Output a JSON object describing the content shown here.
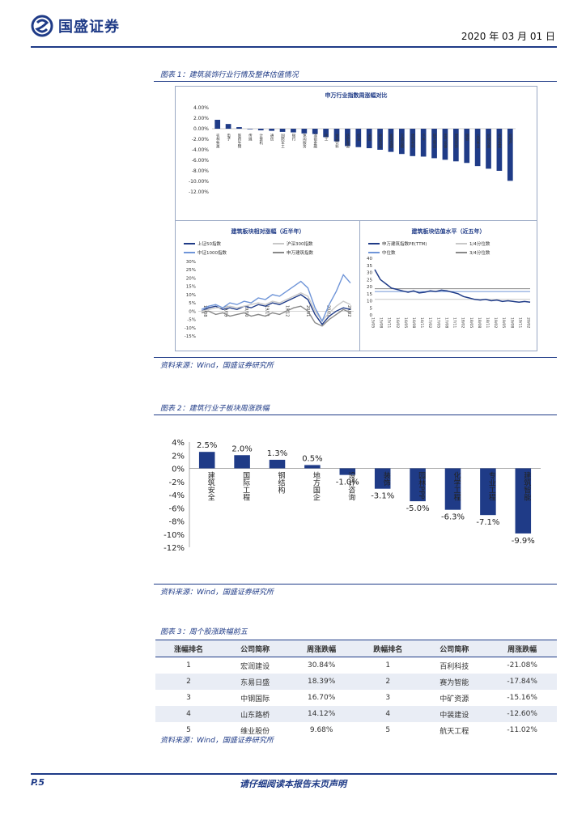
{
  "header": {
    "company": "国盛证券",
    "date": "2020 年 03 月 01 日"
  },
  "fig1": {
    "caption": "图表 1：建筑装饰行业行情及整体估值情况",
    "source": "资料来源：Wind，国盛证券研究所",
    "panelA": {
      "title": "申万行业指数周涨幅对比",
      "yticks": [
        "4.00%",
        "2.00%",
        "0.00%",
        "-2.00%",
        "-4.00%",
        "-6.00%",
        "-8.00%",
        "-10.00%",
        "-12.00%"
      ],
      "labels": [
        "农林牧渔",
        "电子",
        "医药生物",
        "传媒",
        "计算机",
        "通信",
        "国防军工",
        "银行",
        "休闲服务",
        "非银金融",
        "化工",
        "食品饮料",
        "纺织服装",
        "综合",
        "采掘",
        "商业贸易",
        "家用电器",
        "交通运输",
        "建筑材料",
        "汽车",
        "轻工制造",
        "电气设备",
        "建筑装饰",
        "钢铁",
        "公用事业",
        "机械设备",
        "有色金属",
        "房地产"
      ]
    },
    "panelB": {
      "title": "建筑板块相对涨幅（近半年）",
      "legend": [
        "上证50指数",
        "沪深300指数",
        "中证1000指数",
        "申万建筑指数"
      ],
      "yticks": [
        "30%",
        "25%",
        "20%",
        "15%",
        "10%",
        "5%",
        "0%",
        "-5%",
        "-10%",
        "-15%"
      ],
      "xticks": [
        "19/08",
        "19/09",
        "19/10",
        "19/11",
        "19/12",
        "20/01",
        "20/02",
        "20/02"
      ]
    },
    "panelC": {
      "title": "建筑板块估值水平（近五年）",
      "legend": [
        "申万建筑指数PE(TTM)",
        "1/4分位数",
        "中位数",
        "3/4分位数"
      ],
      "yticks": [
        "40",
        "35",
        "30",
        "25",
        "20",
        "15",
        "10",
        "5",
        "0"
      ],
      "xticks": [
        "15/05",
        "15/08",
        "15/11",
        "16/02",
        "16/05",
        "16/08",
        "16/11",
        "17/02",
        "17/05",
        "17/08",
        "17/11",
        "18/02",
        "18/05",
        "18/08",
        "18/11",
        "19/02",
        "19/05",
        "19/08",
        "19/11",
        "20/02"
      ]
    }
  },
  "fig2": {
    "caption": "图表 2：建筑行业子板块周涨跌幅",
    "source": "资料来源：Wind，国盛证券研究所"
  },
  "chart_data": {
    "type": "bar",
    "title": "",
    "categories": [
      "建筑安全",
      "国际工程",
      "钢结构",
      "地方国企",
      "设计咨询",
      "装饰",
      "园林PPP",
      "化学工程",
      "专业工程",
      "建筑智能"
    ],
    "values": [
      2.5,
      2.0,
      1.3,
      0.5,
      -1.0,
      -3.1,
      -5.0,
      -6.3,
      -7.1,
      -9.9
    ],
    "value_labels": [
      "2.5%",
      "2.0%",
      "1.3%",
      "0.5%",
      "-1.0%",
      "-3.1%",
      "-5.0%",
      "-6.3%",
      "-7.1%",
      "-9.9%"
    ],
    "yticks": [
      "4%",
      "2%",
      "0%",
      "-2%",
      "-4%",
      "-6%",
      "-8%",
      "-10%",
      "-12%"
    ],
    "ylim": [
      -12,
      4
    ],
    "color": "#1f3b87"
  },
  "fig3": {
    "caption": "图表 3：周个股涨跌幅前五",
    "source": "资料来源：Wind，国盛证券研究所",
    "headers": [
      "涨幅排名",
      "公司简称",
      "周涨跌幅",
      "跌幅排名",
      "公司简称",
      "周涨跌幅"
    ],
    "rows": [
      [
        "1",
        "宏润建设",
        "30.84%",
        "1",
        "百利科技",
        "-21.08%"
      ],
      [
        "2",
        "东易日盛",
        "18.39%",
        "2",
        "赛为智能",
        "-17.84%"
      ],
      [
        "3",
        "中钢国际",
        "16.70%",
        "3",
        "中矿资源",
        "-15.16%"
      ],
      [
        "4",
        "山东路桥",
        "14.12%",
        "4",
        "中装建设",
        "-12.60%"
      ],
      [
        "5",
        "维业股份",
        "9.68%",
        "5",
        "航天工程",
        "-11.02%"
      ]
    ]
  },
  "footer": {
    "page": "P.5",
    "notice": "请仔细阅读本报告末页声明"
  }
}
